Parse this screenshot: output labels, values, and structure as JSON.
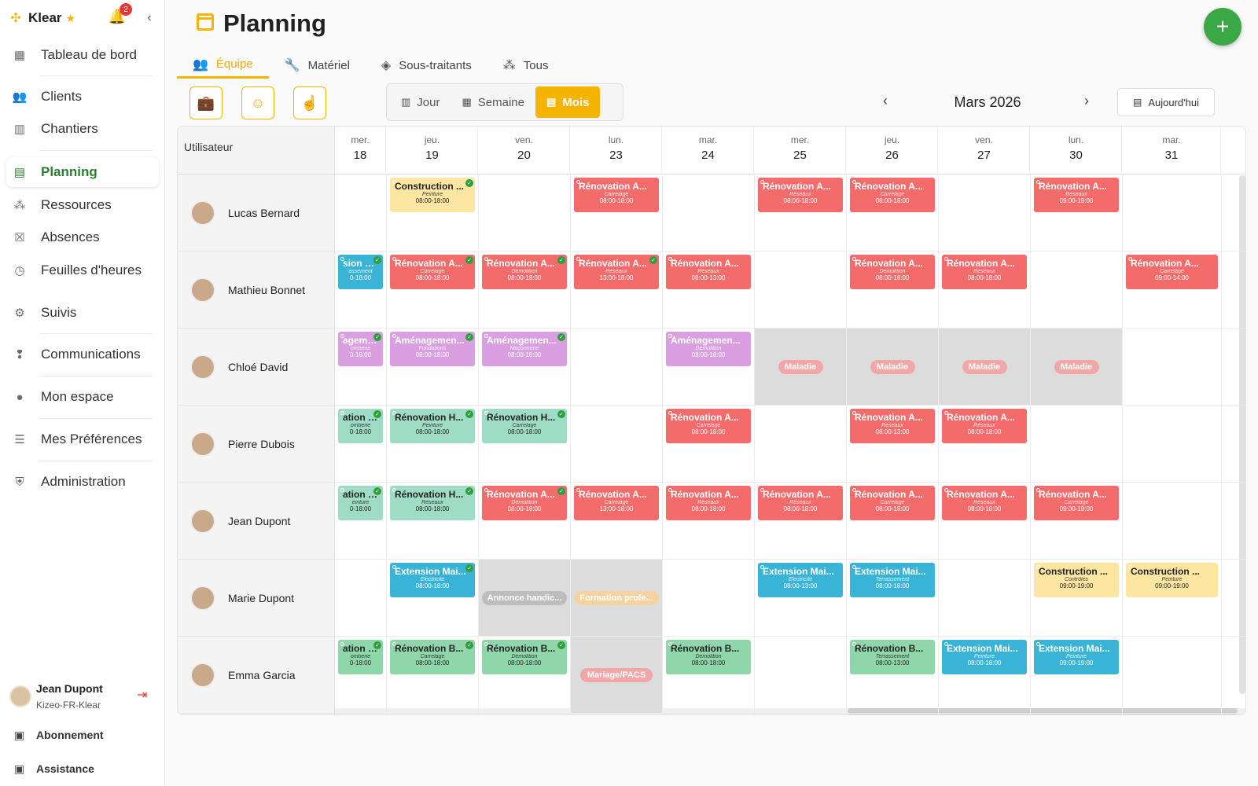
{
  "brand": {
    "name": "Klear",
    "notifications": "2"
  },
  "sidebar": {
    "items": [
      {
        "label": "Tableau de bord",
        "icon": "dashboard-icon"
      },
      {
        "label": "Clients",
        "icon": "users-icon"
      },
      {
        "label": "Chantiers",
        "icon": "building-icon"
      },
      {
        "label": "Planning",
        "icon": "calendar-icon"
      },
      {
        "label": "Ressources",
        "icon": "group-icon"
      },
      {
        "label": "Absences",
        "icon": "calendar-x-icon"
      },
      {
        "label": "Feuilles d'heures",
        "icon": "clock-icon"
      },
      {
        "label": "Suivis",
        "icon": "gear-icon"
      },
      {
        "label": "Communications",
        "icon": "chat-alert-icon"
      },
      {
        "label": "Mon espace",
        "icon": "person-icon"
      },
      {
        "label": "Mes Préférences",
        "icon": "sliders-icon"
      },
      {
        "label": "Administration",
        "icon": "shield-icon"
      }
    ],
    "user": {
      "name": "Jean Dupont",
      "org": "Kizeo-FR-Klear"
    },
    "footer": {
      "subscription": "Abonnement",
      "support": "Assistance"
    }
  },
  "page": {
    "title": "Planning"
  },
  "tabs": [
    {
      "label": "Équipe"
    },
    {
      "label": "Matériel"
    },
    {
      "label": "Sous-traitants"
    },
    {
      "label": "Tous"
    }
  ],
  "views": {
    "day": "Jour",
    "week": "Semaine",
    "month": "Mois"
  },
  "calendar": {
    "month": "Mars 2026",
    "today": "Aujourd'hui",
    "user_header": "Utilisateur"
  },
  "days": [
    {
      "dow": "mer.",
      "num": "18"
    },
    {
      "dow": "jeu.",
      "num": "19"
    },
    {
      "dow": "ven.",
      "num": "20"
    },
    {
      "dow": "lun.",
      "num": "23"
    },
    {
      "dow": "mar.",
      "num": "24"
    },
    {
      "dow": "mer.",
      "num": "25"
    },
    {
      "dow": "jeu.",
      "num": "26"
    },
    {
      "dow": "ven.",
      "num": "27"
    },
    {
      "dow": "lun.",
      "num": "30"
    },
    {
      "dow": "mar.",
      "num": "31"
    }
  ],
  "users": [
    {
      "name": "Lucas Bernard"
    },
    {
      "name": "Mathieu Bonnet"
    },
    {
      "name": "Chloé David"
    },
    {
      "name": "Pierre Dubois"
    },
    {
      "name": "Jean Dupont"
    },
    {
      "name": "Marie Dupont"
    },
    {
      "name": "Emma Garcia"
    }
  ],
  "events": [
    {
      "row": 0,
      "col": 1,
      "title": "Construction ...",
      "sub": "Peinture",
      "time": "08:00-18:00",
      "color": "yellow",
      "check": true
    },
    {
      "row": 0,
      "col": 3,
      "title": "Rénovation A...",
      "sub": "Carrelage",
      "time": "08:00-18:00",
      "color": "red"
    },
    {
      "row": 0,
      "col": 5,
      "title": "Rénovation A...",
      "sub": "Réseaux",
      "time": "08:00-18:00",
      "color": "red"
    },
    {
      "row": 0,
      "col": 6,
      "title": "Rénovation A...",
      "sub": "Carrelage",
      "time": "08:00-18:00",
      "color": "red"
    },
    {
      "row": 0,
      "col": 8,
      "title": "Rénovation A...",
      "sub": "Réseaux",
      "time": "09:00-19:00",
      "color": "red"
    },
    {
      "row": 1,
      "col": 0,
      "title": "sion Mai...",
      "sub": "assement",
      "time": "0-18:00",
      "color": "blue",
      "check": true
    },
    {
      "row": 1,
      "col": 1,
      "title": "Rénovation A...",
      "sub": "Carrelage",
      "time": "08:00-18:00",
      "color": "red",
      "check": true
    },
    {
      "row": 1,
      "col": 2,
      "title": "Rénovation A...",
      "sub": "Démolition",
      "time": "08:00-18:00",
      "color": "red",
      "check": true
    },
    {
      "row": 1,
      "col": 3,
      "title": "Rénovation A...",
      "sub": "Réseaux",
      "time": "13:00-18:00",
      "color": "red",
      "check": true
    },
    {
      "row": 1,
      "col": 4,
      "title": "Rénovation A...",
      "sub": "Réseaux",
      "time": "08:00-13:00",
      "color": "red"
    },
    {
      "row": 1,
      "col": 6,
      "title": "Rénovation A...",
      "sub": "Démolition",
      "time": "08:00-18:00",
      "color": "red"
    },
    {
      "row": 1,
      "col": 7,
      "title": "Rénovation A...",
      "sub": "Réseaux",
      "time": "08:00-18:00",
      "color": "red"
    },
    {
      "row": 1,
      "col": 9,
      "title": "Rénovation A...",
      "sub": "Carrelage",
      "time": "09:00-14:00",
      "color": "red"
    },
    {
      "row": 2,
      "col": 0,
      "title": "agemen...",
      "sub": "omberie",
      "time": "0-18:00",
      "color": "pink",
      "check": true
    },
    {
      "row": 2,
      "col": 1,
      "title": "Aménagemen...",
      "sub": "Fondations",
      "time": "08:00-18:00",
      "color": "pink",
      "check": true
    },
    {
      "row": 2,
      "col": 2,
      "title": "Aménagemen...",
      "sub": "Maçonnerie",
      "time": "08:00-18:00",
      "color": "pink",
      "check": true
    },
    {
      "row": 2,
      "col": 4,
      "title": "Aménagemen...",
      "sub": "Démolition",
      "time": "08:00-18:00",
      "color": "pink"
    },
    {
      "row": 3,
      "col": 0,
      "title": "ation H...",
      "sub": "omberie",
      "time": "0-18:00",
      "color": "teal",
      "check": true
    },
    {
      "row": 3,
      "col": 1,
      "title": "Rénovation H...",
      "sub": "Peinture",
      "time": "08:00-18:00",
      "color": "teal",
      "check": true
    },
    {
      "row": 3,
      "col": 2,
      "title": "Rénovation H...",
      "sub": "Carrelage",
      "time": "08:00-18:00",
      "color": "teal",
      "check": true
    },
    {
      "row": 3,
      "col": 4,
      "title": "Rénovation A...",
      "sub": "Carrelage",
      "time": "08:00-18:00",
      "color": "red"
    },
    {
      "row": 3,
      "col": 6,
      "title": "Rénovation A...",
      "sub": "Réseaux",
      "time": "08:00-13:00",
      "color": "red"
    },
    {
      "row": 3,
      "col": 7,
      "title": "Rénovation A...",
      "sub": "Réseaux",
      "time": "08:00-18:00",
      "color": "red"
    },
    {
      "row": 4,
      "col": 0,
      "title": "ation H...",
      "sub": "einture",
      "time": "0-18:00",
      "color": "teal",
      "check": true
    },
    {
      "row": 4,
      "col": 1,
      "title": "Rénovation H...",
      "sub": "Réseaux",
      "time": "08:00-18:00",
      "color": "teal",
      "check": true
    },
    {
      "row": 4,
      "col": 2,
      "title": "Rénovation A...",
      "sub": "Démolition",
      "time": "08:00-18:00",
      "color": "red",
      "check": true
    },
    {
      "row": 4,
      "col": 3,
      "title": "Rénovation A...",
      "sub": "Carrelage",
      "time": "13:00-18:00",
      "color": "red"
    },
    {
      "row": 4,
      "col": 4,
      "title": "Rénovation A...",
      "sub": "Réseaux",
      "time": "08:00-18:00",
      "color": "red"
    },
    {
      "row": 4,
      "col": 5,
      "title": "Rénovation A...",
      "sub": "Réseaux",
      "time": "08:00-18:00",
      "color": "red"
    },
    {
      "row": 4,
      "col": 6,
      "title": "Rénovation A...",
      "sub": "Carrelage",
      "time": "08:00-18:00",
      "color": "red"
    },
    {
      "row": 4,
      "col": 7,
      "title": "Rénovation A...",
      "sub": "Réseaux",
      "time": "08:00-18:00",
      "color": "red"
    },
    {
      "row": 4,
      "col": 8,
      "title": "Rénovation A...",
      "sub": "Carrelage",
      "time": "09:00-19:00",
      "color": "red"
    },
    {
      "row": 5,
      "col": 1,
      "title": "Extension Mai...",
      "sub": "Electricité",
      "time": "08:00-18:00",
      "color": "blue",
      "check": true
    },
    {
      "row": 5,
      "col": 5,
      "title": "Extension Mai...",
      "sub": "Electricité",
      "time": "08:00-13:00",
      "color": "blue"
    },
    {
      "row": 5,
      "col": 6,
      "title": "Extension Mai...",
      "sub": "Terrassement",
      "time": "08:00-18:00",
      "color": "blue"
    },
    {
      "row": 5,
      "col": 8,
      "title": "Construction ...",
      "sub": "Contrôles",
      "time": "09:00-19:00",
      "color": "yellow"
    },
    {
      "row": 5,
      "col": 9,
      "title": "Construction ...",
      "sub": "Peinture",
      "time": "09:00-19:00",
      "color": "yellow"
    },
    {
      "row": 6,
      "col": 0,
      "title": "ation B...",
      "sub": "omberie",
      "time": "0-18:00",
      "color": "green",
      "check": true
    },
    {
      "row": 6,
      "col": 1,
      "title": "Rénovation B...",
      "sub": "Carrelage",
      "time": "08:00-18:00",
      "color": "green",
      "check": true
    },
    {
      "row": 6,
      "col": 2,
      "title": "Rénovation B...",
      "sub": "Démolition",
      "time": "08:00-18:00",
      "color": "green",
      "check": true
    },
    {
      "row": 6,
      "col": 4,
      "title": "Rénovation B...",
      "sub": "Démolition",
      "time": "08:00-18:00",
      "color": "green"
    },
    {
      "row": 6,
      "col": 6,
      "title": "Rénovation B...",
      "sub": "Terrassement",
      "time": "08:00-13:00",
      "color": "green"
    },
    {
      "row": 6,
      "col": 7,
      "title": "Extension Mai...",
      "sub": "Peinture",
      "time": "08:00-18:00",
      "color": "blue"
    },
    {
      "row": 6,
      "col": 8,
      "title": "Extension Mai...",
      "sub": "Peinture",
      "time": "09:00-19:00",
      "color": "blue"
    }
  ],
  "absences": [
    {
      "row": 2,
      "col": 5,
      "label": "Maladie",
      "style": "pink"
    },
    {
      "row": 2,
      "col": 6,
      "label": "Maladie",
      "style": "pink"
    },
    {
      "row": 2,
      "col": 7,
      "label": "Maladie",
      "style": "pink"
    },
    {
      "row": 2,
      "col": 8,
      "label": "Maladie",
      "style": "pink"
    },
    {
      "row": 5,
      "col": 2,
      "label": "Annonce handic...",
      "style": "grey"
    },
    {
      "row": 5,
      "col": 3,
      "label": "Formation profe...",
      "style": "orange",
      "span": 2
    },
    {
      "row": 6,
      "col": 3,
      "label": "Mariage/PACS",
      "style": "pink"
    }
  ]
}
